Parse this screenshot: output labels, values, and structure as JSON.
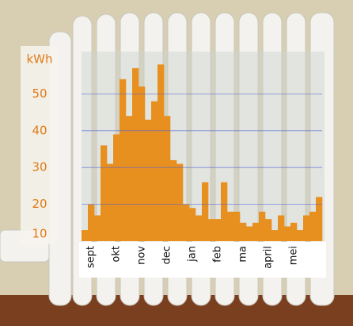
{
  "chart_data": {
    "type": "bar",
    "y_label": "kWh",
    "categories": [
      null,
      "sept",
      null,
      null,
      null,
      "okt",
      null,
      null,
      null,
      "nov",
      null,
      null,
      null,
      "dec",
      null,
      null,
      null,
      "jan",
      null,
      null,
      null,
      "feb",
      null,
      null,
      null,
      "ma",
      null,
      null,
      null,
      "april",
      null,
      null,
      null,
      "mei",
      null,
      null,
      null,
      null
    ],
    "values": [
      13,
      20,
      17,
      36,
      31,
      39,
      54,
      44,
      57,
      52,
      43,
      48,
      58,
      44,
      32,
      31,
      20,
      19,
      17,
      26,
      16,
      16,
      26,
      18,
      18,
      15,
      14,
      15,
      18,
      16,
      13,
      17,
      14,
      15,
      13,
      17,
      18,
      22
    ],
    "color": "#e8901f",
    "ylim": [
      10,
      60
    ],
    "yticks": [
      10,
      20,
      30,
      40,
      50
    ],
    "grid": true
  }
}
